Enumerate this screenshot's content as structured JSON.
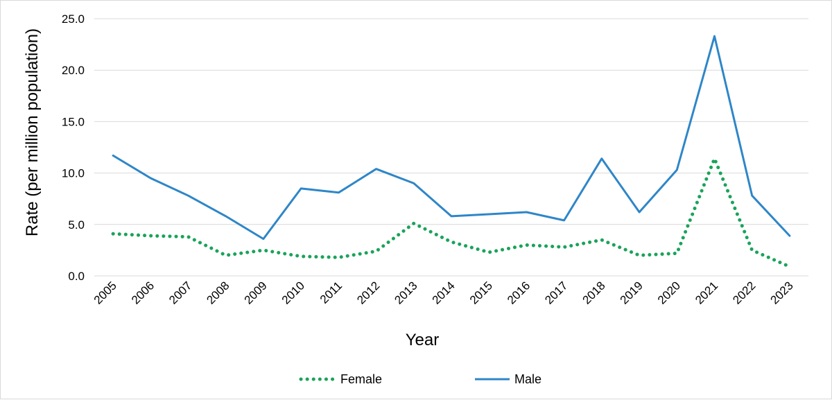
{
  "chart_data": {
    "type": "line",
    "title": "",
    "xlabel": "Year",
    "ylabel": "Rate (per million population)",
    "ylim": [
      0,
      25
    ],
    "yticks": [
      "0.0",
      "5.0",
      "10.0",
      "15.0",
      "20.0",
      "25.0"
    ],
    "grid": "horizontal",
    "legend_position": "bottom",
    "categories": [
      "2005",
      "2006",
      "2007",
      "2008",
      "2009",
      "2010",
      "2011",
      "2012",
      "2013",
      "2014",
      "2015",
      "2016",
      "2017",
      "2018",
      "2019",
      "2020",
      "2021",
      "2022",
      "2023"
    ],
    "series": [
      {
        "name": "Female",
        "style": "dotted",
        "color": "#1aa35a",
        "values": [
          4.1,
          3.9,
          3.8,
          2.0,
          2.5,
          1.9,
          1.8,
          2.4,
          5.1,
          3.3,
          2.3,
          3.0,
          2.8,
          3.5,
          2.0,
          2.2,
          11.4,
          2.5,
          0.9
        ]
      },
      {
        "name": "Male",
        "style": "solid",
        "color": "#2e86c8",
        "values": [
          11.7,
          9.5,
          7.8,
          5.8,
          3.6,
          8.5,
          8.1,
          10.4,
          9.0,
          5.8,
          6.0,
          6.2,
          5.4,
          11.4,
          6.2,
          10.3,
          23.3,
          7.8,
          3.9
        ]
      }
    ]
  }
}
